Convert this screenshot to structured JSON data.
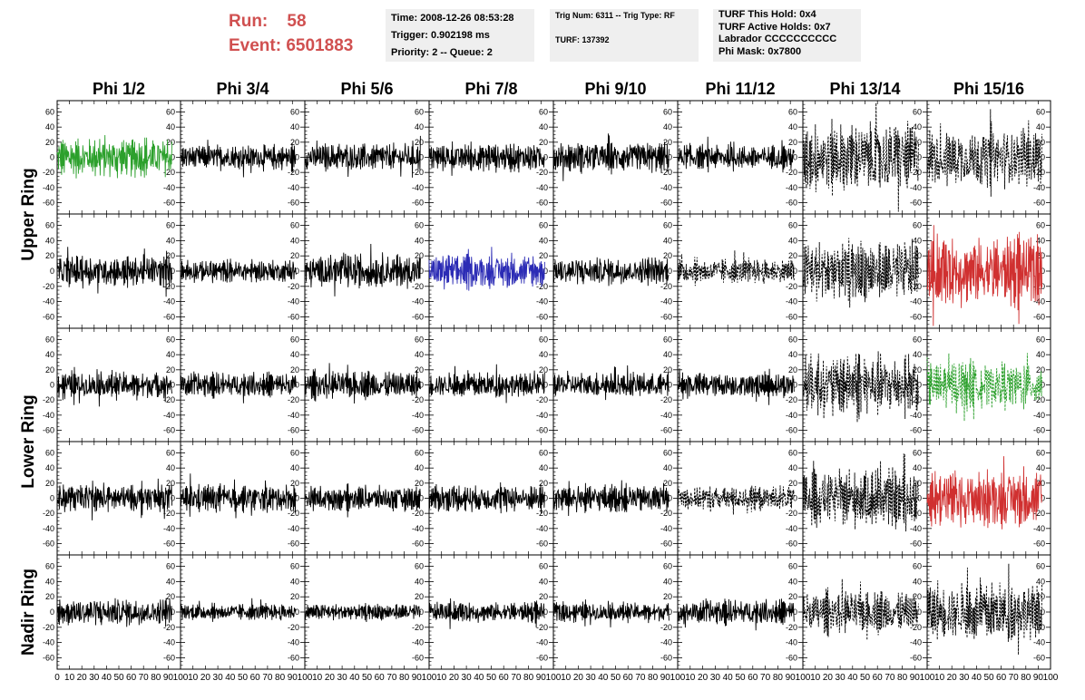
{
  "header": {
    "run_label": "Run:",
    "run_value": "58",
    "event_label": "Event:",
    "event_value": "6501883",
    "time_box": [
      "Time: 2008-12-26 08:53:28",
      "Trigger: 0.902198 ms",
      "Priority: 2 -- Queue: 2"
    ],
    "trig_box": [
      "Trig Num: 6311 -- Trig Type: RF",
      "TURF: 137392"
    ],
    "turf_box": [
      "TURF This Hold: 0x4",
      "TURF Active Holds: 0x7",
      "Labrador CCCCCCCCCC",
      "Phi Mask: 0x7800"
    ],
    "accent_color": "#d05050"
  },
  "chart_data": {
    "type": "line",
    "grid": true,
    "columns": [
      "Phi 1/2",
      "Phi 3/4",
      "Phi 5/6",
      "Phi 7/8",
      "Phi 9/10",
      "Phi 11/12",
      "Phi 13/14",
      "Phi 15/16"
    ],
    "ring_labels": [
      "Upper Ring",
      "Lower Ring",
      "Nadir Ring"
    ],
    "xlim": [
      0,
      100
    ],
    "ylim": [
      -75,
      75
    ],
    "x_ticks": [
      "0",
      "10",
      "20",
      "30",
      "40",
      "50",
      "60",
      "70",
      "80",
      "90",
      "100"
    ],
    "x_tick_values": [
      0,
      10,
      20,
      30,
      40,
      50,
      60,
      70,
      80,
      90,
      100
    ],
    "y_ticks": [
      "60",
      "40",
      "20",
      "0",
      "-20",
      "-40",
      "-60"
    ],
    "y_tick_values": [
      60,
      40,
      20,
      0,
      -20,
      -40,
      -60
    ],
    "samples_per_trace": 260,
    "trace_x_range": [
      0,
      93
    ],
    "rows": [
      [
        "green-solid",
        "black-solid",
        "black-solid",
        "black-solid",
        "black-solid",
        "black-solid",
        "black-dashed",
        "black-dashed"
      ],
      [
        "black-solid",
        "black-solid",
        "black-solid",
        "blue-solid",
        "black-solid",
        "black-dashed",
        "black-dashed",
        "red-solid"
      ],
      [
        "black-solid",
        "black-solid",
        "black-solid",
        "black-solid",
        "black-solid",
        "black-solid",
        "black-dashed",
        "green-dashed"
      ],
      [
        "black-solid",
        "black-solid",
        "black-solid",
        "black-solid",
        "black-solid",
        "black-dashed",
        "black-dashed",
        "red-solid"
      ],
      [
        "black-solid",
        "black-solid",
        "black-solid",
        "black-solid",
        "black-solid",
        "black-solid",
        "black-dashed",
        "black-dashed"
      ]
    ],
    "amplitudes": [
      [
        28,
        18,
        20,
        20,
        22,
        18,
        52,
        42
      ],
      [
        22,
        16,
        24,
        24,
        20,
        18,
        44,
        48
      ],
      [
        20,
        18,
        20,
        18,
        18,
        18,
        44,
        34
      ],
      [
        20,
        20,
        18,
        20,
        20,
        18,
        40,
        42
      ],
      [
        20,
        12,
        12,
        14,
        14,
        18,
        30,
        42
      ]
    ],
    "colors": {
      "black": "#000000",
      "green": "#2ca02c",
      "blue": "#2b2bb5",
      "red": "#d03030"
    }
  }
}
